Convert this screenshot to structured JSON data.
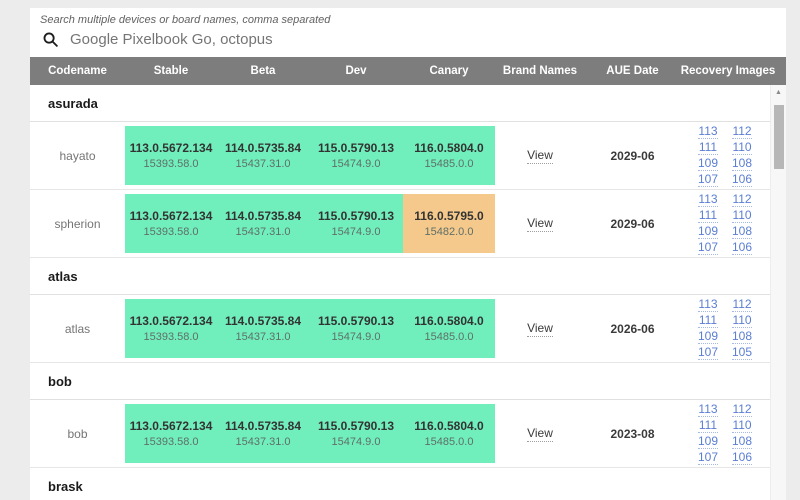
{
  "search": {
    "label": "Search multiple devices or board names, comma separated",
    "value": "Google Pixelbook Go, octopus"
  },
  "colors": {
    "green": "#70efbd",
    "orange": "#f5c98c",
    "link_blue": "#5b7ed2",
    "header_bg": "#7d7d7d"
  },
  "table": {
    "columns": [
      "Codename",
      "Stable",
      "Beta",
      "Dev",
      "Canary",
      "Brand Names",
      "AUE Date",
      "Recovery Images"
    ],
    "brand_link_label": "View",
    "groups": [
      {
        "name": "asurada",
        "rows": [
          {
            "codename": "hayato",
            "stable": {
              "version": "113.0.5672.134",
              "platform": "15393.58.0",
              "status": "green"
            },
            "beta": {
              "version": "114.0.5735.84",
              "platform": "15437.31.0",
              "status": "green"
            },
            "dev": {
              "version": "115.0.5790.13",
              "platform": "15474.9.0",
              "status": "green"
            },
            "canary": {
              "version": "116.0.5804.0",
              "platform": "15485.0.0",
              "status": "green"
            },
            "brand": "View",
            "aue": "2029-06",
            "recovery": [
              "113",
              "112",
              "111",
              "110",
              "109",
              "108",
              "107",
              "106"
            ]
          },
          {
            "codename": "spherion",
            "stable": {
              "version": "113.0.5672.134",
              "platform": "15393.58.0",
              "status": "green"
            },
            "beta": {
              "version": "114.0.5735.84",
              "platform": "15437.31.0",
              "status": "green"
            },
            "dev": {
              "version": "115.0.5790.13",
              "platform": "15474.9.0",
              "status": "green"
            },
            "canary": {
              "version": "116.0.5795.0",
              "platform": "15482.0.0",
              "status": "orange"
            },
            "brand": "View",
            "aue": "2029-06",
            "recovery": [
              "113",
              "112",
              "111",
              "110",
              "109",
              "108",
              "107",
              "106"
            ]
          }
        ]
      },
      {
        "name": "atlas",
        "rows": [
          {
            "codename": "atlas",
            "stable": {
              "version": "113.0.5672.134",
              "platform": "15393.58.0",
              "status": "green"
            },
            "beta": {
              "version": "114.0.5735.84",
              "platform": "15437.31.0",
              "status": "green"
            },
            "dev": {
              "version": "115.0.5790.13",
              "platform": "15474.9.0",
              "status": "green"
            },
            "canary": {
              "version": "116.0.5804.0",
              "platform": "15485.0.0",
              "status": "green"
            },
            "brand": "View",
            "aue": "2026-06",
            "recovery": [
              "113",
              "112",
              "111",
              "110",
              "109",
              "108",
              "107",
              "105"
            ]
          }
        ]
      },
      {
        "name": "bob",
        "rows": [
          {
            "codename": "bob",
            "stable": {
              "version": "113.0.5672.134",
              "platform": "15393.58.0",
              "status": "green"
            },
            "beta": {
              "version": "114.0.5735.84",
              "platform": "15437.31.0",
              "status": "green"
            },
            "dev": {
              "version": "115.0.5790.13",
              "platform": "15474.9.0",
              "status": "green"
            },
            "canary": {
              "version": "116.0.5804.0",
              "platform": "15485.0.0",
              "status": "green"
            },
            "brand": "View",
            "aue": "2023-08",
            "recovery": [
              "113",
              "112",
              "111",
              "110",
              "109",
              "108",
              "107",
              "106"
            ]
          }
        ]
      },
      {
        "name": "brask",
        "rows": []
      }
    ]
  }
}
